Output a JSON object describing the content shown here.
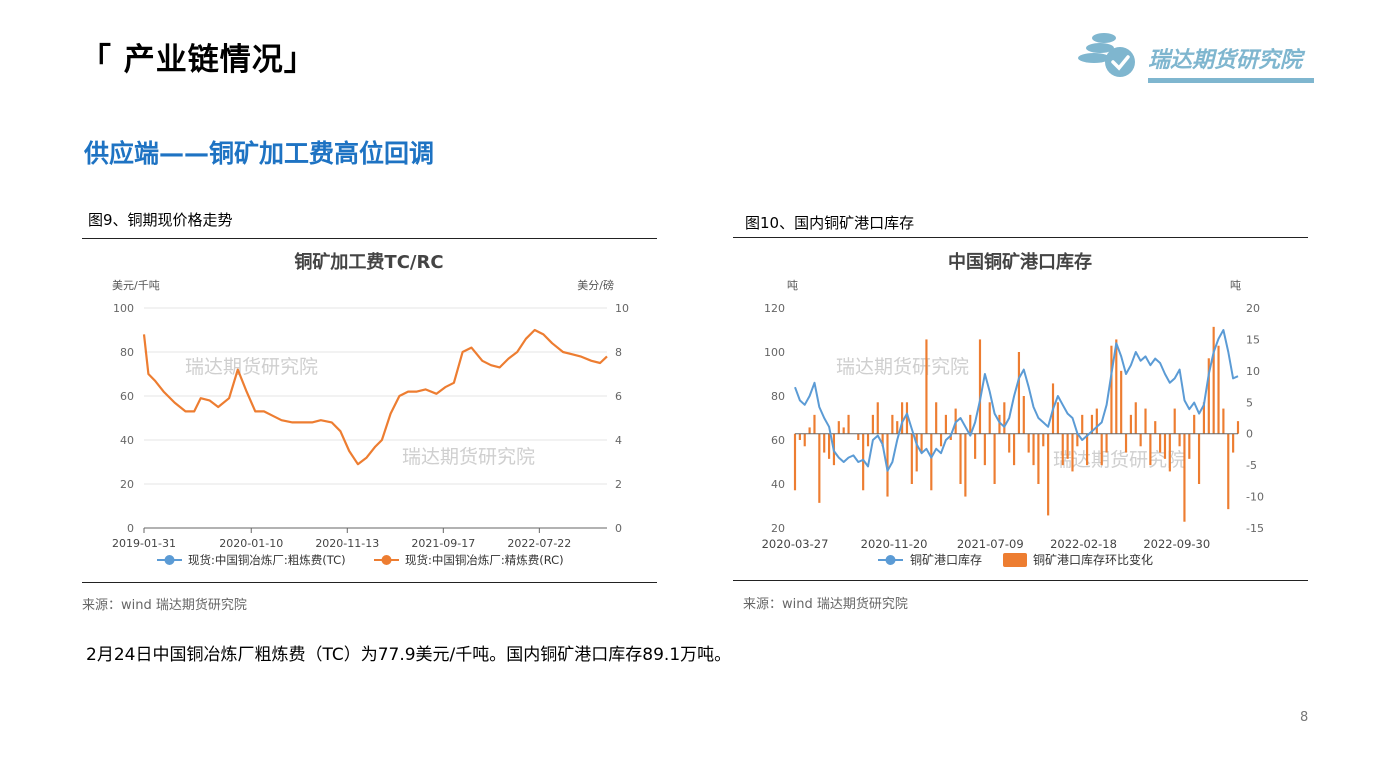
{
  "page": {
    "title": "「 产业链情况」",
    "heading": "供应端——铜矿加工费高位回调",
    "summary": "2月24日中国铜冶炼厂粗炼费（TC）为77.9美元/千吨。国内铜矿港口库存89.1万吨。",
    "page_number": "8"
  },
  "logo": {
    "text": "瑞达期货研究院",
    "color": "#7fb6cf"
  },
  "figures": {
    "fig1": {
      "caption": "图9、铜期现价格走势",
      "source": "来源：wind   瑞达期货研究院"
    },
    "fig2": {
      "caption": "图10、国内铜矿港口库存",
      "source": "来源：wind   瑞达期货研究院"
    }
  },
  "watermark": "瑞达期货研究院",
  "chart_data": [
    {
      "type": "line",
      "title": "铜矿加工费TC/RC",
      "ylabel_left": "美元/千吨",
      "ylabel_right": "美分/磅",
      "ylim_left": [
        0,
        100
      ],
      "ylim_right": [
        0,
        10
      ],
      "yticks_left": [
        "0",
        "20",
        "40",
        "60",
        "80",
        "100"
      ],
      "yticks_right": [
        "0",
        "2",
        "4",
        "6",
        "8",
        "10"
      ],
      "x_tick_labels": [
        "2019-01-31",
        "2020-01-10",
        "2020-11-13",
        "2021-09-17",
        "2022-07-22"
      ],
      "legend": [
        "现货:中国铜冶炼厂:粗炼费(TC)",
        "现货:中国铜冶炼厂:精炼费(RC)"
      ],
      "colors": [
        "#5b9bd5",
        "#ed7d31"
      ],
      "grid": true,
      "legend_position": "bottom",
      "series": [
        {
          "name": "现货:中国铜冶炼厂:精炼费(RC)",
          "axis": "left",
          "x": [
            "2019-01-31",
            "2019-02-14",
            "2019-03-07",
            "2019-04-04",
            "2019-05-09",
            "2019-06-13",
            "2019-07-11",
            "2019-08-01",
            "2019-08-29",
            "2019-09-26",
            "2019-10-31",
            "2019-11-28",
            "2019-12-26",
            "2020-01-23",
            "2020-02-20",
            "2020-03-19",
            "2020-04-16",
            "2020-05-21",
            "2020-06-25",
            "2020-07-23",
            "2020-08-20",
            "2020-09-24",
            "2020-10-22",
            "2020-11-19",
            "2020-12-17",
            "2021-01-14",
            "2021-02-11",
            "2021-03-04",
            "2021-04-01",
            "2021-04-29",
            "2021-05-27",
            "2021-06-24",
            "2021-07-22",
            "2021-08-26",
            "2021-09-23",
            "2021-10-21",
            "2021-11-18",
            "2021-12-16",
            "2022-01-20",
            "2022-02-17",
            "2022-03-17",
            "2022-04-14",
            "2022-05-12",
            "2022-06-09",
            "2022-07-07",
            "2022-08-04",
            "2022-09-01",
            "2022-10-06",
            "2022-11-03",
            "2022-12-01",
            "2023-01-05",
            "2023-02-02",
            "2023-02-24"
          ],
          "values": [
            88,
            70,
            67,
            62,
            57,
            53,
            53,
            59,
            58,
            55,
            59,
            72,
            62,
            53,
            53,
            51,
            49,
            48,
            48,
            48,
            49,
            48,
            44,
            35,
            29,
            32,
            37,
            40,
            52,
            60,
            62,
            62,
            63,
            61,
            64,
            66,
            80,
            82,
            76,
            74,
            73,
            77,
            80,
            86,
            90,
            88,
            84,
            80,
            79,
            78,
            76,
            75,
            78
          ]
        }
      ]
    },
    {
      "type": "bar",
      "title": "中国铜矿港口库存",
      "ylabel_left": "吨",
      "ylabel_right": "吨",
      "ylim_left": [
        20,
        120
      ],
      "ylim_right": [
        -15,
        20
      ],
      "yticks_left": [
        "20",
        "40",
        "60",
        "80",
        "100",
        "120"
      ],
      "yticks_right": [
        "-15",
        "-10",
        "-5",
        "0",
        "5",
        "10",
        "15",
        "20"
      ],
      "x_tick_labels": [
        "2020-03-27",
        "2020-11-20",
        "2021-07-09",
        "2022-02-18",
        "2022-09-30"
      ],
      "legend": [
        "铜矿港口库存",
        "铜矿港口库存环比变化"
      ],
      "colors": [
        "#5b9bd5",
        "#ed7d31"
      ],
      "grid": false,
      "legend_position": "bottom",
      "inventory": {
        "name": "铜矿港口库存",
        "type": "line",
        "axis": "left",
        "start": "2020-03-27",
        "end": "2023-02-24",
        "values": [
          84,
          78,
          76,
          80,
          86,
          75,
          70,
          66,
          55,
          52,
          50,
          52,
          53,
          50,
          51,
          48,
          60,
          62,
          58,
          46,
          50,
          60,
          68,
          72,
          65,
          58,
          54,
          56,
          52,
          56,
          54,
          60,
          62,
          68,
          70,
          66,
          62,
          68,
          78,
          90,
          82,
          72,
          68,
          66,
          70,
          80,
          88,
          92,
          84,
          75,
          70,
          68,
          66,
          74,
          80,
          76,
          72,
          70,
          63,
          60,
          62,
          64,
          66,
          68,
          76,
          90,
          104,
          98,
          90,
          94,
          100,
          96,
          98,
          94,
          97,
          95,
          90,
          86,
          88,
          92,
          78,
          74,
          77,
          72,
          76,
          90,
          100,
          106,
          110,
          100,
          88,
          89
        ]
      },
      "change": {
        "name": "铜矿港口库存环比变化",
        "type": "bar",
        "axis": "right",
        "values": [
          -9,
          -1,
          -2,
          1,
          3,
          -11,
          -3,
          -4,
          -5,
          2,
          1,
          3,
          0,
          -1,
          -9,
          -2,
          3,
          5,
          -2,
          -10,
          3,
          2,
          5,
          5,
          -8,
          -6,
          -3,
          15,
          -9,
          5,
          -2,
          3,
          -1,
          4,
          -8,
          -10,
          3,
          -4,
          15,
          -5,
          5,
          -8,
          3,
          5,
          -3,
          -5,
          13,
          6,
          -3,
          -5,
          -8,
          -2,
          -13,
          8,
          5,
          -5,
          -4,
          -6,
          -2,
          3,
          -5,
          3,
          4,
          -5,
          -3,
          14,
          15,
          10,
          -3,
          3,
          5,
          -2,
          4,
          -5,
          2,
          -3,
          -4,
          -6,
          4,
          -2,
          -14,
          -4,
          3,
          -8,
          5,
          12,
          17,
          14,
          4,
          -12,
          -3,
          2
        ]
      }
    }
  ]
}
